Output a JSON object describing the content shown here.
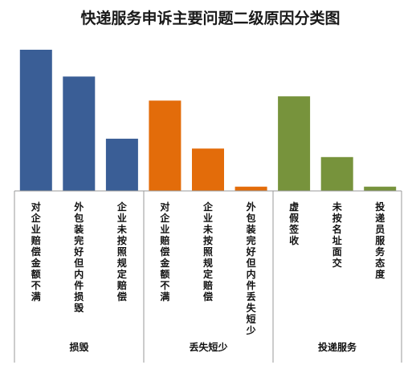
{
  "chart_data": {
    "type": "bar",
    "title": "快递服务申诉主要问题二级原因分类图",
    "grid": false,
    "legend": "none",
    "groups": [
      {
        "name": "损毁",
        "color": "#3A5E96",
        "categories": [
          "对企业赔偿金额不满",
          "外包装完好但内件损毁",
          "企业未按照规定赔偿"
        ],
        "values": [
          100,
          81,
          37
        ]
      },
      {
        "name": "丢失短少",
        "color": "#E36C0A",
        "categories": [
          "对企业赔偿金额不满",
          "企业未按照规定赔偿",
          "外包装完好但内件丢失短少"
        ],
        "values": [
          64,
          30,
          3
        ]
      },
      {
        "name": "投递服务",
        "color": "#77933C",
        "categories": [
          "虚假签收",
          "未按名址面交",
          "投递员服务态度"
        ],
        "values": [
          67,
          24,
          3
        ]
      }
    ],
    "ylim": [
      0,
      100
    ]
  }
}
